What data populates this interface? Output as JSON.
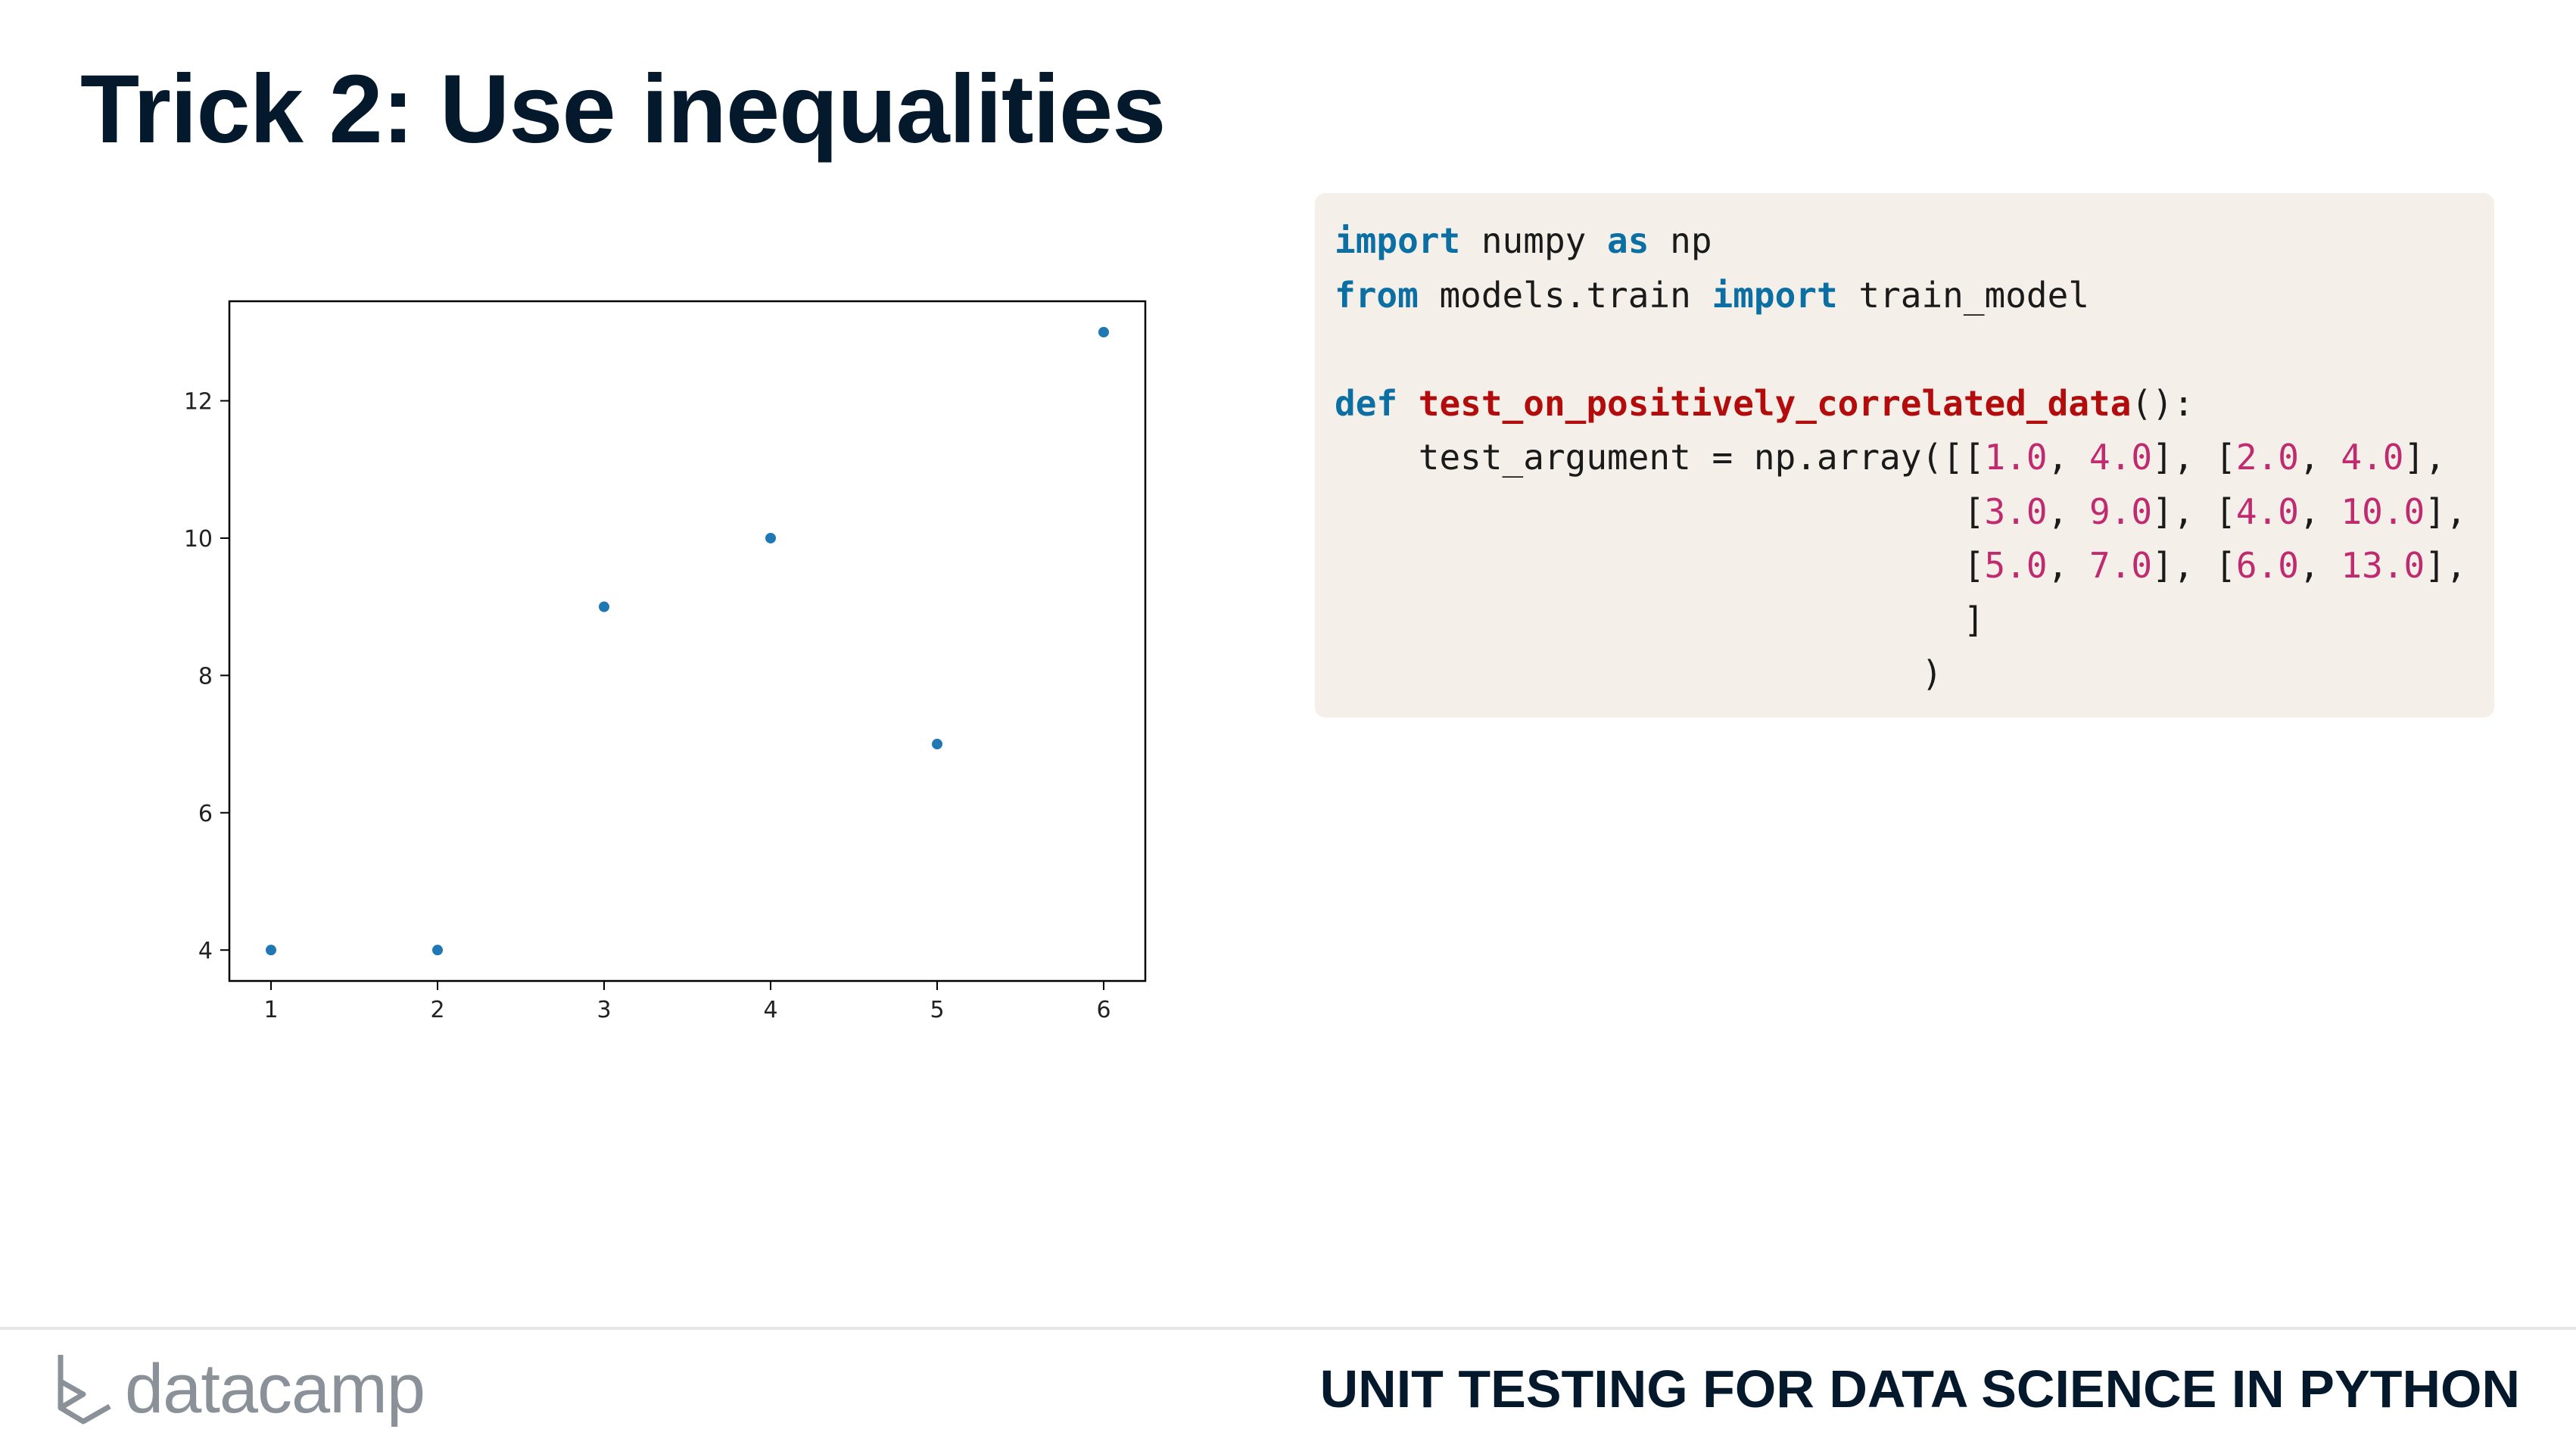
{
  "slide": {
    "title": "Trick 2: Use inequalities"
  },
  "code": {
    "lines": [
      [
        {
          "t": "import",
          "c": "kw"
        },
        {
          "t": " numpy ",
          "c": ""
        },
        {
          "t": "as",
          "c": "kw"
        },
        {
          "t": " np",
          "c": ""
        }
      ],
      [
        {
          "t": "from",
          "c": "kw"
        },
        {
          "t": " models.train ",
          "c": ""
        },
        {
          "t": "import",
          "c": "kw"
        },
        {
          "t": " train_model",
          "c": ""
        }
      ],
      [],
      [
        {
          "t": "def",
          "c": "kw"
        },
        {
          "t": " ",
          "c": ""
        },
        {
          "t": "test_on_positively_correlated_data",
          "c": "fn"
        },
        {
          "t": "():",
          "c": ""
        }
      ],
      [
        {
          "t": "    test_argument = np.array([[",
          "c": ""
        },
        {
          "t": "1.0",
          "c": "num"
        },
        {
          "t": ", ",
          "c": ""
        },
        {
          "t": "4.0",
          "c": "num"
        },
        {
          "t": "], [",
          "c": ""
        },
        {
          "t": "2.0",
          "c": "num"
        },
        {
          "t": ", ",
          "c": ""
        },
        {
          "t": "4.0",
          "c": "num"
        },
        {
          "t": "],",
          "c": ""
        }
      ],
      [
        {
          "t": "                              [",
          "c": ""
        },
        {
          "t": "3.0",
          "c": "num"
        },
        {
          "t": ", ",
          "c": ""
        },
        {
          "t": "9.0",
          "c": "num"
        },
        {
          "t": "], [",
          "c": ""
        },
        {
          "t": "4.0",
          "c": "num"
        },
        {
          "t": ", ",
          "c": ""
        },
        {
          "t": "10.0",
          "c": "num"
        },
        {
          "t": "],",
          "c": ""
        }
      ],
      [
        {
          "t": "                              [",
          "c": ""
        },
        {
          "t": "5.0",
          "c": "num"
        },
        {
          "t": ", ",
          "c": ""
        },
        {
          "t": "7.0",
          "c": "num"
        },
        {
          "t": "], [",
          "c": ""
        },
        {
          "t": "6.0",
          "c": "num"
        },
        {
          "t": ", ",
          "c": ""
        },
        {
          "t": "13.0",
          "c": "num"
        },
        {
          "t": "],",
          "c": ""
        }
      ],
      [
        {
          "t": "                              ]",
          "c": ""
        }
      ],
      [
        {
          "t": "                            )",
          "c": ""
        }
      ]
    ]
  },
  "chart_data": {
    "type": "scatter",
    "title": "",
    "xlabel": "",
    "ylabel": "",
    "x": [
      1,
      2,
      3,
      4,
      5,
      6
    ],
    "y": [
      4,
      4,
      9,
      10,
      7,
      13
    ],
    "xlim": [
      0.75,
      6.25
    ],
    "ylim": [
      3.55,
      13.45
    ],
    "xticks": [
      1,
      2,
      3,
      4,
      5,
      6
    ],
    "yticks": [
      4,
      6,
      8,
      10,
      12
    ],
    "grid": false,
    "point_color": "#1f77b4"
  },
  "footer": {
    "logo_text": "datacamp",
    "course_title": "UNIT TESTING FOR DATA SCIENCE IN PYTHON"
  },
  "colors": {
    "title": "#05192d",
    "code_background": "#f4f0e9",
    "keyword": "#0b6fa4",
    "function_name": "#b20c0c",
    "number": "#c02a6e"
  }
}
